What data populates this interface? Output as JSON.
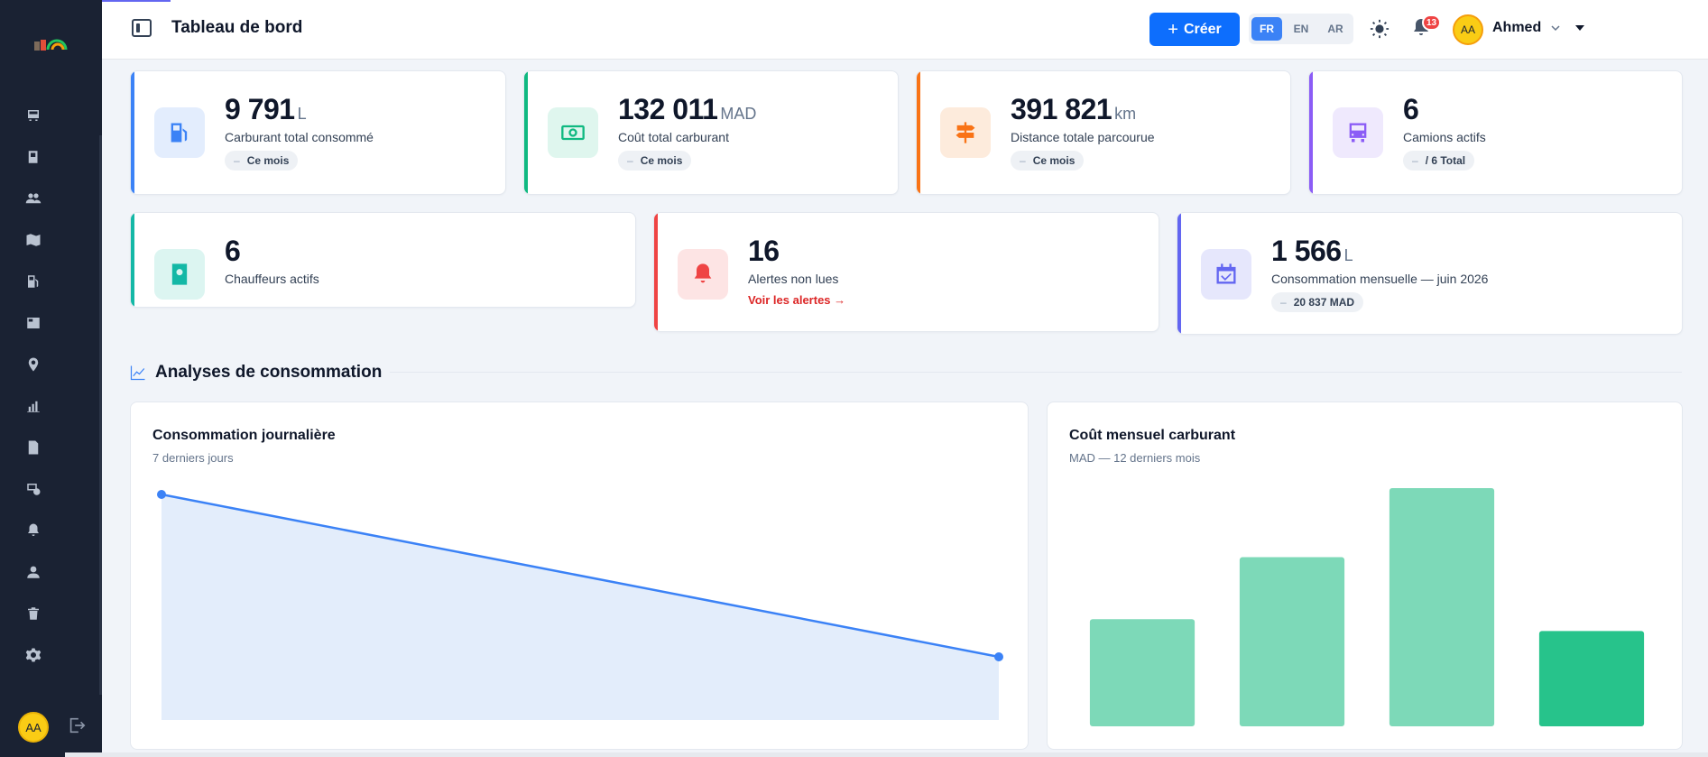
{
  "header": {
    "title": "Tableau de bord",
    "create_label": "Créer",
    "languages": [
      "FR",
      "EN",
      "AR"
    ],
    "active_language": "FR",
    "notification_count": "13",
    "user_initials": "AA",
    "user_name": "Ahmed"
  },
  "sidebar": {
    "icons": [
      "bus-icon",
      "book-icon",
      "users-icon",
      "map-icon",
      "fuel-pump-icon",
      "newspaper-icon",
      "map-pin-icon",
      "bar-chart-icon",
      "document-check-icon",
      "settings-clock-icon",
      "bell-icon",
      "user-icon",
      "trash-icon",
      "gear-icon"
    ],
    "user_initials": "AA"
  },
  "stats": [
    {
      "value": "9 791",
      "unit": "L",
      "label": "Carburant total consommé",
      "pill": "Ce mois",
      "color": "#3b82f6",
      "icon": "fuel-pump-icon"
    },
    {
      "value": "132 011",
      "unit": "MAD",
      "label": "Coût total carburant",
      "pill": "Ce mois",
      "color": "#10b981",
      "icon": "banknote-icon"
    },
    {
      "value": "391 821",
      "unit": "km",
      "label": "Distance totale parcourue",
      "pill": "Ce mois",
      "color": "#f97316",
      "icon": "signpost-icon"
    },
    {
      "value": "6",
      "unit": "",
      "label": "Camions actifs",
      "pill": "/ 6 Total",
      "color": "#8b5cf6",
      "icon": "bus-icon"
    },
    {
      "value": "6",
      "unit": "",
      "label": "Chauffeurs actifs",
      "pill": "",
      "color": "#14b8a6",
      "icon": "id-badge-icon"
    },
    {
      "value": "16",
      "unit": "",
      "label": "Alertes non lues",
      "link": "Voir les alertes →",
      "color": "#ef4444",
      "icon": "bell-icon"
    },
    {
      "value": "1 566",
      "unit": "L",
      "label": "Consommation mensuelle — juin 2026",
      "pill": "20 837 MAD",
      "color": "#6366f1",
      "icon": "calendar-check-icon"
    }
  ],
  "section": {
    "title": "Analyses de consommation"
  },
  "charts": {
    "daily": {
      "title": "Consommation journalière",
      "subtitle": "7 derniers jours"
    },
    "monthly": {
      "title": "Coût mensuel carburant",
      "subtitle": "MAD — 12 derniers mois"
    }
  },
  "chart_data": [
    {
      "type": "area",
      "title": "Consommation journalière",
      "subtitle": "7 derniers jours",
      "x": [
        1,
        2
      ],
      "values": [
        100,
        28
      ],
      "ylim": [
        0,
        100
      ],
      "color": "#3b82f6",
      "grid": false
    },
    {
      "type": "bar",
      "title": "Coût mensuel carburant",
      "subtitle": "MAD — 12 derniers mois",
      "values": [
        45,
        71,
        100,
        40
      ],
      "ylim": [
        0,
        100
      ],
      "colors": [
        "#7dd9b8",
        "#7dd9b8",
        "#7dd9b8",
        "#27c38b"
      ],
      "grid": false
    }
  ]
}
